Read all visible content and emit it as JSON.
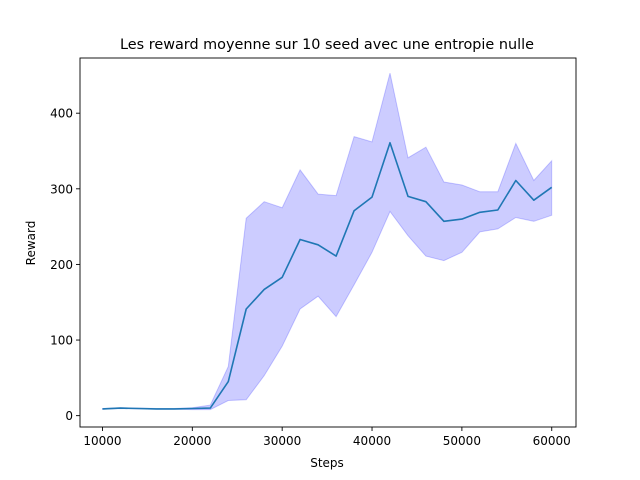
{
  "chart_data": {
    "type": "line",
    "title": "Les reward moyenne sur 10 seed avec une entropie nulle",
    "xlabel": "Steps",
    "ylabel": "Reward",
    "xlim": [
      7500,
      62700
    ],
    "ylim": [
      -15,
      473
    ],
    "xticks": [
      10000,
      20000,
      30000,
      40000,
      50000,
      60000
    ],
    "yticks": [
      0,
      100,
      200,
      300,
      400
    ],
    "grid": false,
    "legend": "none",
    "line_color": "#1f77b4",
    "band_color": "#0000ff",
    "series": [
      {
        "x": [
          10000,
          12000,
          14000,
          16000,
          18000,
          20000,
          22000,
          24000,
          26000,
          28000,
          30000,
          32000,
          34000,
          36000,
          38000,
          40000,
          42000,
          44000,
          46000,
          48000,
          50000,
          52000,
          54000,
          56000,
          58000,
          60000
        ],
        "mean": [
          9,
          10,
          9.5,
          9,
          9,
          9.5,
          10,
          45,
          141,
          167,
          183,
          233,
          226,
          211,
          271,
          289,
          361,
          290,
          283,
          257,
          260,
          269,
          272,
          311,
          285,
          302
        ],
        "upper": [
          9.5,
          10.5,
          10,
          9.5,
          9.5,
          10.5,
          14,
          65,
          261,
          283,
          275,
          325,
          293,
          291,
          369,
          362,
          453,
          341,
          355,
          309,
          305,
          296,
          296,
          360,
          311,
          337
        ],
        "lower": [
          8.5,
          9.5,
          9,
          8.5,
          8.5,
          8,
          8,
          20,
          21,
          53,
          92,
          141,
          158,
          131,
          173,
          216,
          270,
          238,
          211,
          205,
          216,
          243,
          247,
          262,
          257,
          265
        ]
      }
    ]
  }
}
